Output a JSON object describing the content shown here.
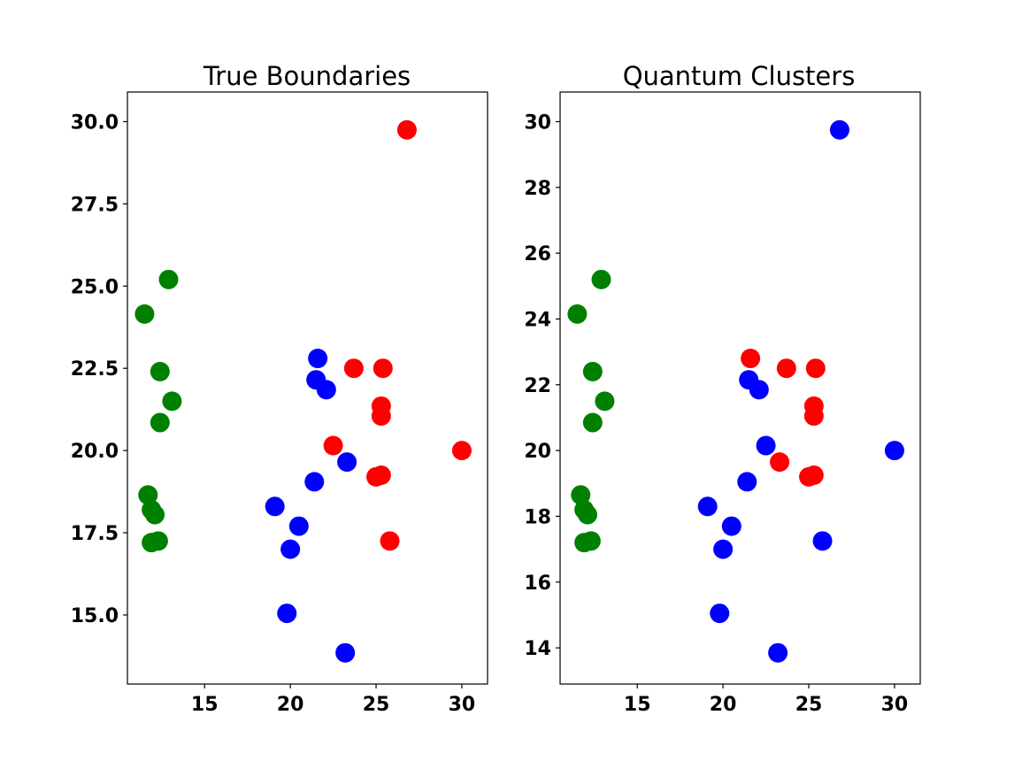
{
  "colors": {
    "green": "#008000",
    "red": "#ff0000",
    "blue": "#0000ff"
  },
  "chart_data": [
    {
      "type": "scatter",
      "title": "True Boundaries",
      "xlabel": "",
      "ylabel": "",
      "xlim": [
        10.5,
        31.5
      ],
      "ylim": [
        12.9,
        30.9
      ],
      "xticks": [
        15,
        20,
        25,
        30
      ],
      "xtick_labels": [
        "15",
        "20",
        "25",
        "30"
      ],
      "yticks": [
        15.0,
        17.5,
        20.0,
        22.5,
        25.0,
        27.5,
        30.0
      ],
      "ytick_labels": [
        "15.0",
        "17.5",
        "20.0",
        "22.5",
        "25.0",
        "27.5",
        "30.0"
      ],
      "grid": false,
      "series": [
        {
          "color": "green",
          "points": [
            [
              11.5,
              24.15
            ],
            [
              12.9,
              25.2
            ],
            [
              12.4,
              22.4
            ],
            [
              13.1,
              21.5
            ],
            [
              12.4,
              20.85
            ],
            [
              11.7,
              18.65
            ],
            [
              11.9,
              18.2
            ],
            [
              12.1,
              18.05
            ],
            [
              11.9,
              17.2
            ],
            [
              12.3,
              17.25
            ]
          ]
        },
        {
          "color": "red",
          "points": [
            [
              26.8,
              29.75
            ],
            [
              23.7,
              22.5
            ],
            [
              25.4,
              22.5
            ],
            [
              25.3,
              21.35
            ],
            [
              25.3,
              21.05
            ],
            [
              22.5,
              20.15
            ],
            [
              30.0,
              20.0
            ],
            [
              25.0,
              19.2
            ],
            [
              25.3,
              19.25
            ],
            [
              25.8,
              17.25
            ]
          ]
        },
        {
          "color": "blue",
          "points": [
            [
              21.6,
              22.8
            ],
            [
              21.5,
              22.15
            ],
            [
              22.1,
              21.85
            ],
            [
              23.3,
              19.65
            ],
            [
              21.4,
              19.05
            ],
            [
              19.1,
              18.3
            ],
            [
              20.5,
              17.7
            ],
            [
              20.0,
              17.0
            ],
            [
              19.8,
              15.05
            ],
            [
              23.2,
              13.85
            ]
          ]
        }
      ]
    },
    {
      "type": "scatter",
      "title": "Quantum Clusters",
      "xlabel": "",
      "ylabel": "",
      "xlim": [
        10.5,
        31.5
      ],
      "ylim": [
        12.9,
        30.9
      ],
      "xticks": [
        15,
        20,
        25,
        30
      ],
      "xtick_labels": [
        "15",
        "20",
        "25",
        "30"
      ],
      "yticks": [
        14,
        16,
        18,
        20,
        22,
        24,
        26,
        28,
        30
      ],
      "ytick_labels": [
        "14",
        "16",
        "18",
        "20",
        "22",
        "24",
        "26",
        "28",
        "30"
      ],
      "grid": false,
      "series": [
        {
          "color": "green",
          "points": [
            [
              11.5,
              24.15
            ],
            [
              12.9,
              25.2
            ],
            [
              12.4,
              22.4
            ],
            [
              13.1,
              21.5
            ],
            [
              12.4,
              20.85
            ],
            [
              11.7,
              18.65
            ],
            [
              11.9,
              18.2
            ],
            [
              12.1,
              18.05
            ],
            [
              11.9,
              17.2
            ],
            [
              12.3,
              17.25
            ]
          ]
        },
        {
          "color": "red",
          "points": [
            [
              21.6,
              22.8
            ],
            [
              23.7,
              22.5
            ],
            [
              25.4,
              22.5
            ],
            [
              25.3,
              21.35
            ],
            [
              25.3,
              21.05
            ],
            [
              23.3,
              19.65
            ],
            [
              25.0,
              19.2
            ],
            [
              25.3,
              19.25
            ]
          ]
        },
        {
          "color": "blue",
          "points": [
            [
              26.8,
              29.75
            ],
            [
              21.5,
              22.15
            ],
            [
              22.1,
              21.85
            ],
            [
              22.5,
              20.15
            ],
            [
              30.0,
              20.0
            ],
            [
              21.4,
              19.05
            ],
            [
              19.1,
              18.3
            ],
            [
              20.5,
              17.7
            ],
            [
              20.0,
              17.0
            ],
            [
              19.8,
              15.05
            ],
            [
              23.2,
              13.85
            ],
            [
              25.8,
              17.25
            ]
          ]
        }
      ]
    }
  ]
}
